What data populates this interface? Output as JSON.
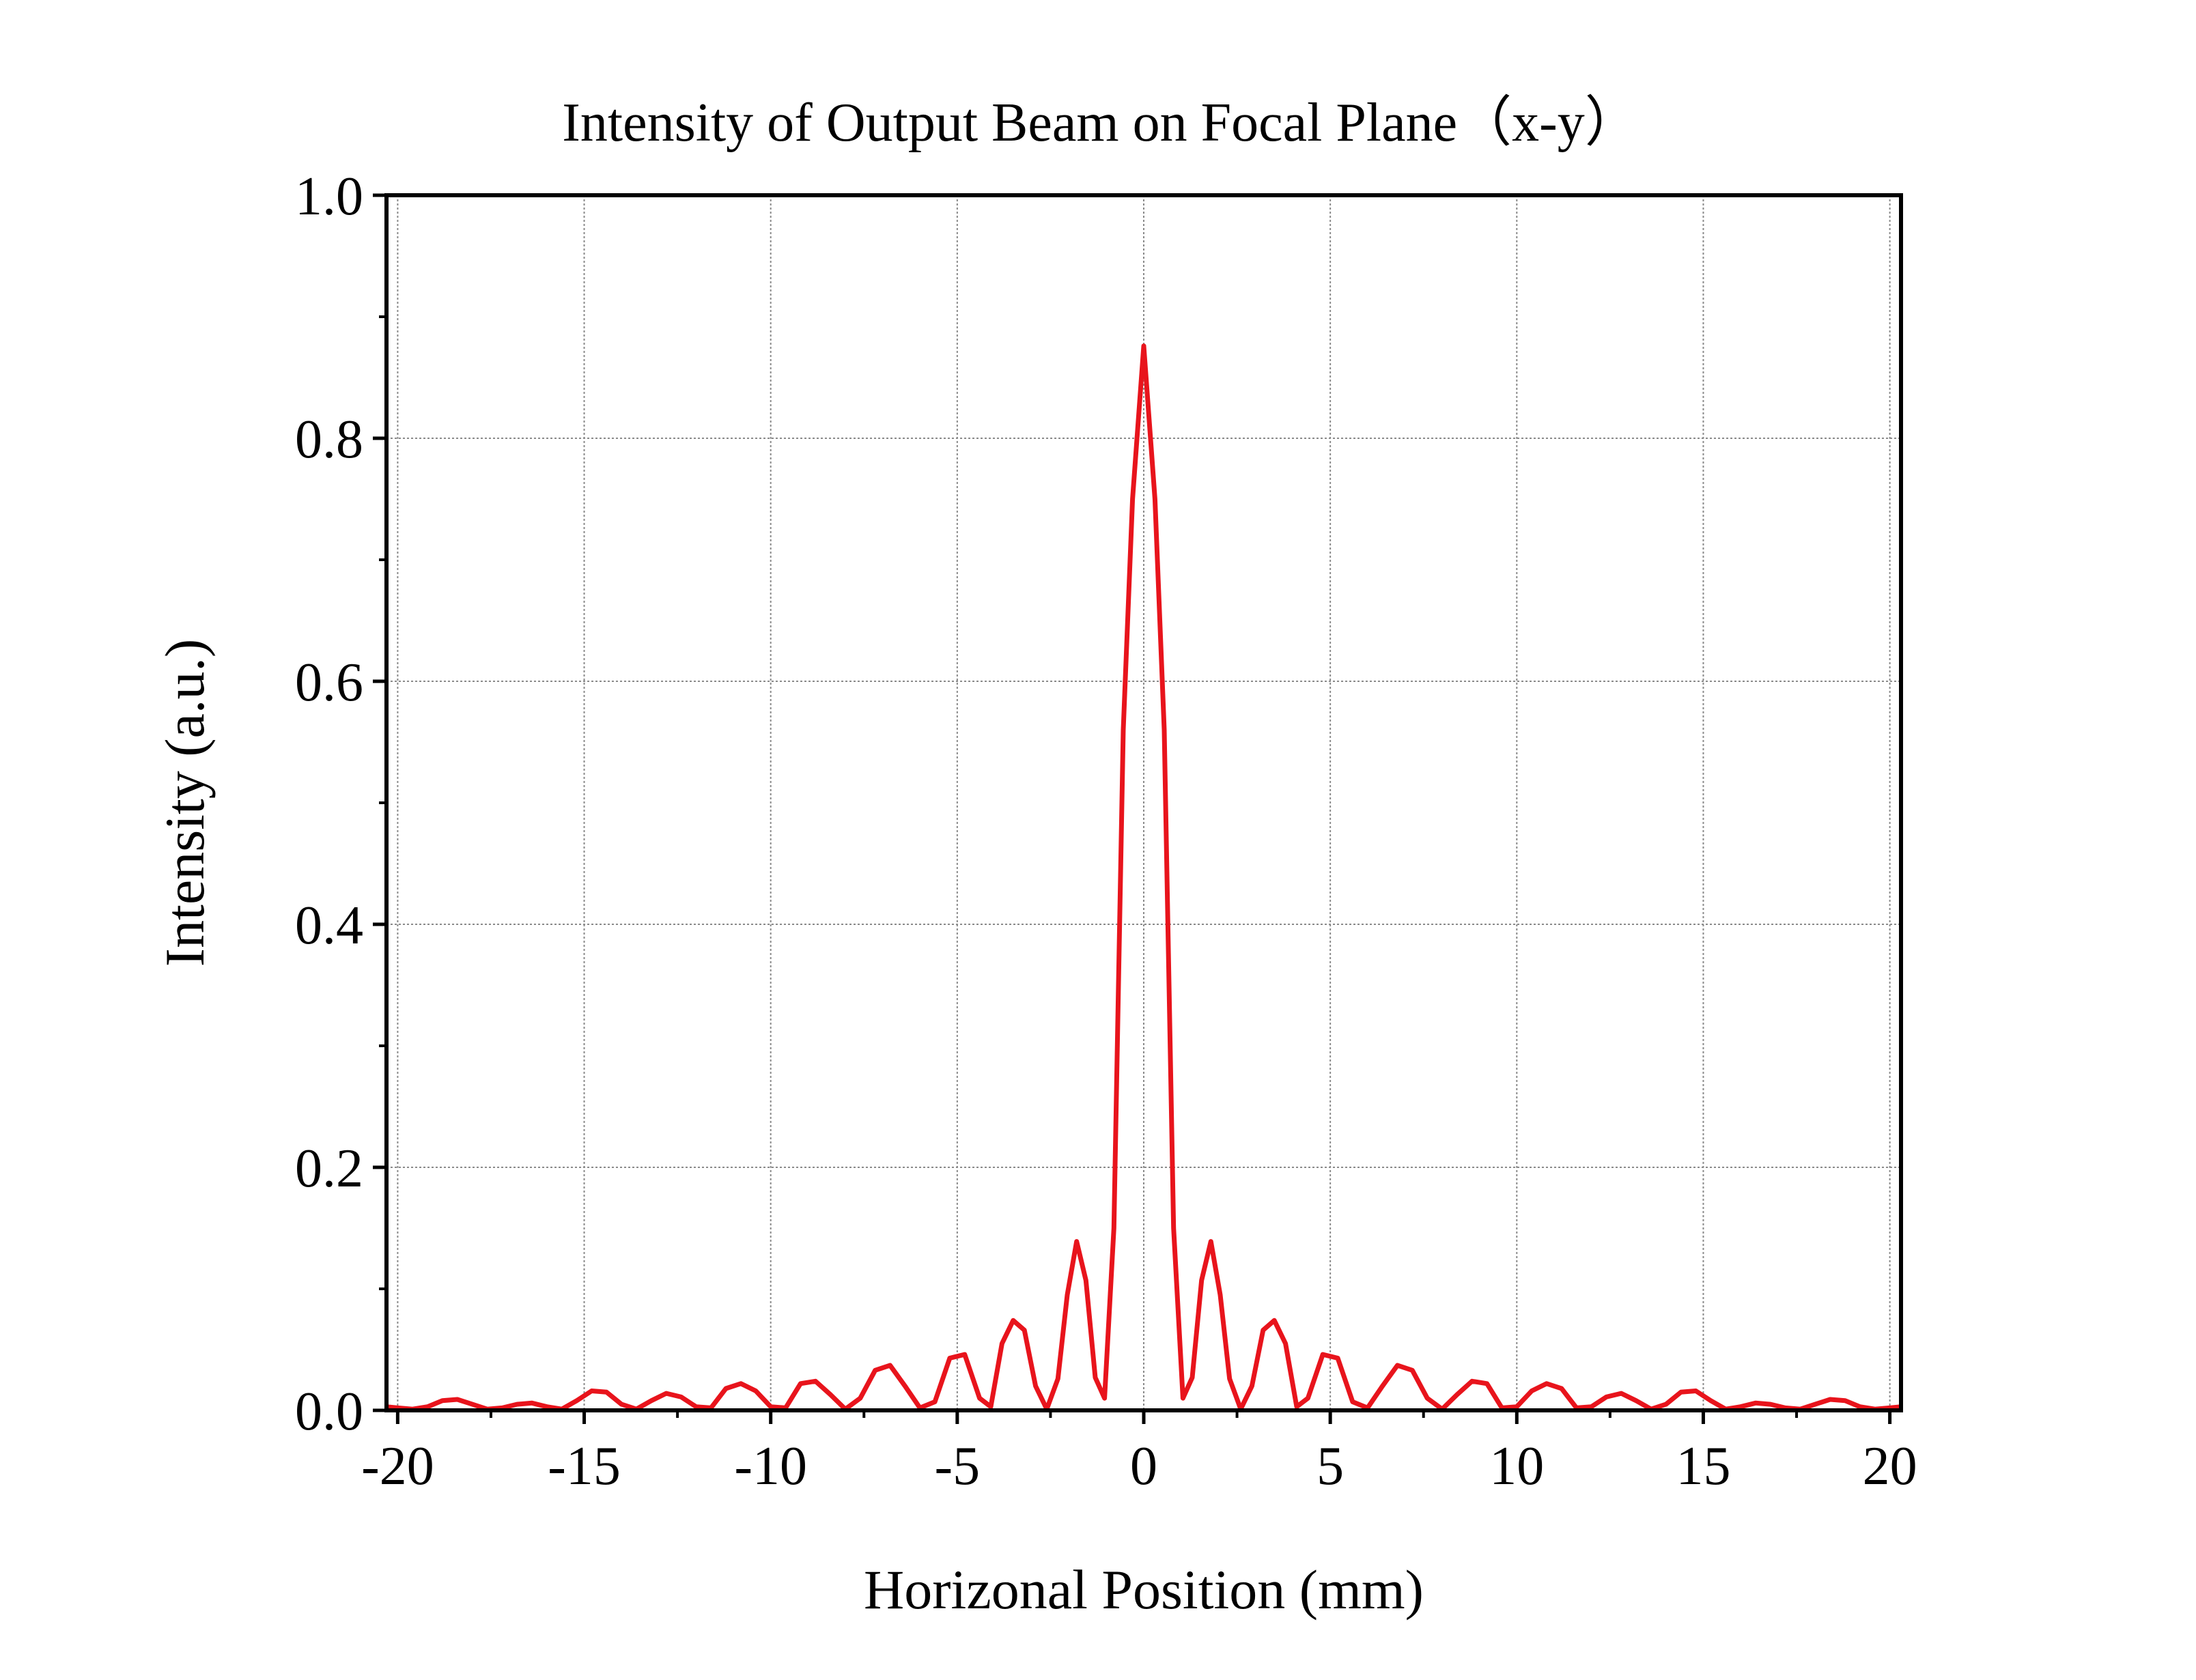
{
  "chart_data": {
    "type": "line",
    "title": "Intensity of Output Beam on Focal Plane（x-y）",
    "xlabel": "Horizonal Position (mm)",
    "ylabel": "Intensity (a.u.)",
    "xlim": [
      -20.3,
      20.3
    ],
    "ylim": [
      0,
      1.0
    ],
    "xticks": [
      -20,
      -15,
      -10,
      -5,
      0,
      5,
      10,
      15,
      20
    ],
    "xtick_labels": [
      "-20",
      "-15",
      "-10",
      "-5",
      "0",
      "5",
      "10",
      "15",
      "20"
    ],
    "yticks": [
      0.0,
      0.2,
      0.4,
      0.6,
      0.8,
      1.0
    ],
    "ytick_labels": [
      "0.0",
      "0.2",
      "0.4",
      "0.6",
      "0.8",
      "1.0"
    ],
    "grid": true,
    "line_color": "#e8141c",
    "series": [
      {
        "x": [
          -20.3,
          -20,
          -19.6,
          -19.2,
          -18.8,
          -18.4,
          -18.0,
          -17.6,
          -17.2,
          -16.8,
          -16.4,
          -16.0,
          -15.6,
          -15.2,
          -14.8,
          -14.4,
          -14.0,
          -13.6,
          -13.2,
          -12.8,
          -12.4,
          -12.0,
          -11.6,
          -11.2,
          -10.8,
          -10.4,
          -10.0,
          -9.6,
          -9.2,
          -8.8,
          -8.4,
          -8.0,
          -7.6,
          -7.2,
          -6.8,
          -6.4,
          -6.0,
          -5.6,
          -5.2,
          -4.8,
          -4.4,
          -4.1,
          -3.8,
          -3.5,
          -3.2,
          -2.9,
          -2.6,
          -2.3,
          -2.05,
          -1.8,
          -1.55,
          -1.3,
          -1.05,
          -0.8,
          -0.55,
          -0.3,
          0,
          0.3,
          0.55,
          0.8,
          1.05,
          1.3,
          1.55,
          1.8,
          2.05,
          2.3,
          2.6,
          2.9,
          3.2,
          3.5,
          3.8,
          4.1,
          4.4,
          4.8,
          5.2,
          5.6,
          6.0,
          6.4,
          6.8,
          7.2,
          7.6,
          8.0,
          8.4,
          8.8,
          9.2,
          9.6,
          10.0,
          10.4,
          10.8,
          11.2,
          11.6,
          12.0,
          12.4,
          12.8,
          13.2,
          13.6,
          14.0,
          14.4,
          14.8,
          15.2,
          15.6,
          16.0,
          16.4,
          16.8,
          17.2,
          17.6,
          18.0,
          18.4,
          18.8,
          19.2,
          19.6,
          20.0,
          20.3
        ],
        "y": [
          0.003,
          0.002,
          0.001,
          0.003,
          0.008,
          0.009,
          0.005,
          0.001,
          0.002,
          0.005,
          0.006,
          0.003,
          0.001,
          0.008,
          0.016,
          0.015,
          0.005,
          0.001,
          0.008,
          0.014,
          0.011,
          0.003,
          0.002,
          0.018,
          0.022,
          0.016,
          0.003,
          0.002,
          0.022,
          0.024,
          0.013,
          0.001,
          0.01,
          0.033,
          0.037,
          0.02,
          0.002,
          0.007,
          0.043,
          0.046,
          0.01,
          0.003,
          0.055,
          0.074,
          0.066,
          0.02,
          0.001,
          0.026,
          0.095,
          0.139,
          0.107,
          0.027,
          0.01,
          0.15,
          0.56,
          0.75,
          0.876,
          0.75,
          0.56,
          0.15,
          0.01,
          0.027,
          0.107,
          0.139,
          0.095,
          0.026,
          0.001,
          0.02,
          0.066,
          0.074,
          0.055,
          0.003,
          0.01,
          0.046,
          0.043,
          0.007,
          0.002,
          0.02,
          0.037,
          0.033,
          0.01,
          0.001,
          0.013,
          0.024,
          0.022,
          0.002,
          0.003,
          0.016,
          0.022,
          0.018,
          0.002,
          0.003,
          0.011,
          0.014,
          0.008,
          0.001,
          0.005,
          0.015,
          0.016,
          0.008,
          0.001,
          0.003,
          0.006,
          0.005,
          0.002,
          0.001,
          0.005,
          0.009,
          0.008,
          0.003,
          0.001,
          0.002,
          0.003
        ]
      }
    ]
  }
}
